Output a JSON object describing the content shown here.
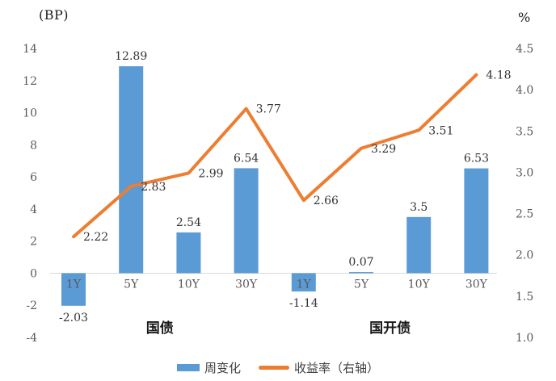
{
  "chart_data": {
    "type": "bar+line",
    "categories": [
      "1Y",
      "5Y",
      "10Y",
      "30Y",
      "1Y",
      "5Y",
      "10Y",
      "30Y"
    ],
    "groups": [
      {
        "label": "国债",
        "span": [
          0,
          3
        ]
      },
      {
        "label": "国开债",
        "span": [
          4,
          7
        ]
      }
    ],
    "series": [
      {
        "name": "周变化",
        "type": "bar",
        "axis": "left",
        "color": "#5B9BD5",
        "values": [
          -2.03,
          12.89,
          2.54,
          6.54,
          -1.14,
          0.07,
          3.5,
          6.53
        ],
        "labels": [
          "-2.03",
          "12.89",
          "2.54",
          "6.54",
          "-1.14",
          "0.07",
          "3.5",
          "6.53"
        ]
      },
      {
        "name": "收益率（右轴）",
        "type": "line",
        "axis": "right",
        "color": "#ED7D31",
        "values": [
          2.22,
          2.83,
          2.99,
          3.77,
          2.66,
          3.29,
          3.51,
          4.18
        ],
        "labels": [
          "2.22",
          "2.83",
          "2.99",
          "3.77",
          "2.66",
          "3.29",
          "3.51",
          "4.18"
        ]
      }
    ],
    "left_axis": {
      "title": "(BP)",
      "min": -4,
      "max": 14,
      "step": 2,
      "ticks": [
        "14",
        "12",
        "10",
        "8",
        "6",
        "4",
        "2",
        "0",
        "-2",
        "-4"
      ]
    },
    "right_axis": {
      "title": "%",
      "min": 1.0,
      "max": 4.5,
      "step": 0.5,
      "ticks": [
        "4.5",
        "4.0",
        "3.5",
        "3.0",
        "2.5",
        "2.0",
        "1.5",
        "1.0"
      ]
    },
    "legend": [
      {
        "label": "周变化",
        "color": "#5B9BD5",
        "type": "bar"
      },
      {
        "label": "收益率（右轴）",
        "color": "#ED7D31",
        "type": "line"
      }
    ],
    "grid": false,
    "legend_position": "bottom",
    "text_colors": {
      "axis_tick": "#595959",
      "value_label": "#333333",
      "group_label": "#1a1a1a",
      "axis_line": "#d9d9d9"
    }
  }
}
